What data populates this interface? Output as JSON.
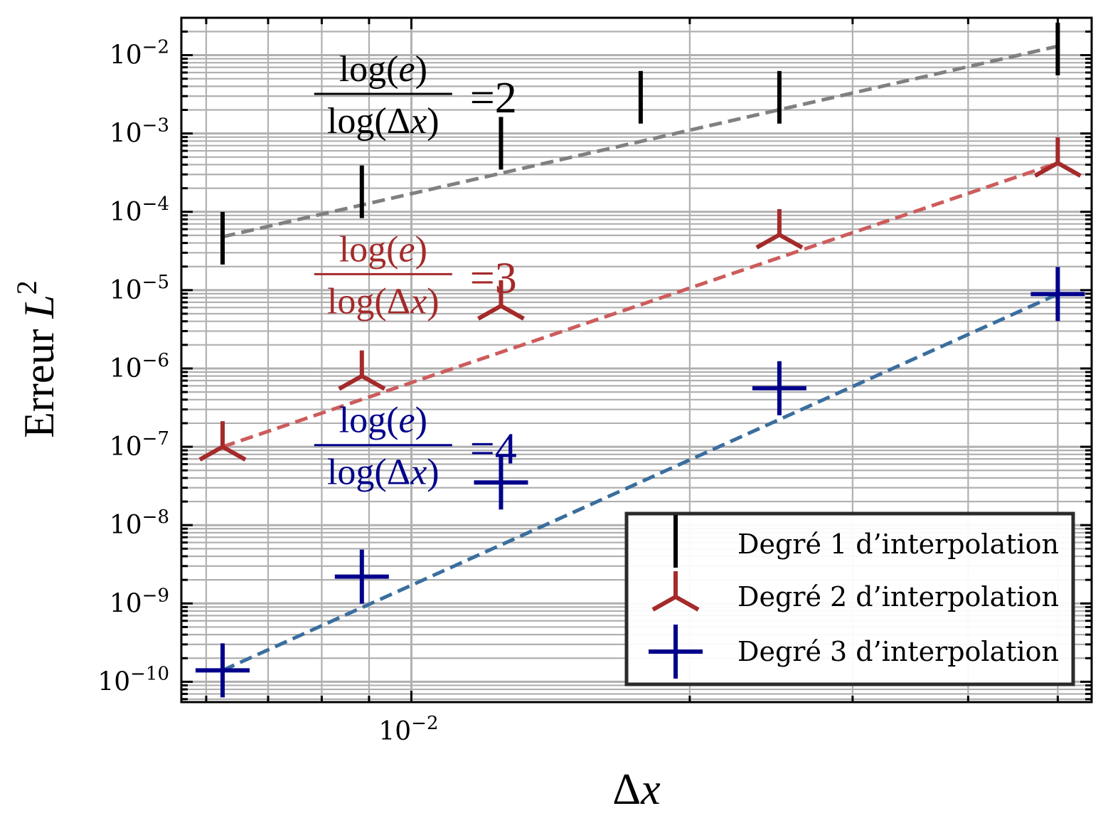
{
  "chart_data": {
    "type": "scatter",
    "xlabel_prefix": "Δ",
    "xlabel_var": "x",
    "ylabel_prefix": "Erreur ",
    "ylabel_var": "L",
    "ylabel_exp": "2",
    "x_scale": "log",
    "y_scale": "log",
    "xlim": [
      0.00564,
      0.0544
    ],
    "ylim": [
      5.5e-11,
      0.03
    ],
    "grid": true,
    "legend_position": "lower right",
    "x_ticks": [
      {
        "value": 0.01,
        "base": "10",
        "exp": "−2"
      }
    ],
    "y_ticks": [
      {
        "value": 0.01,
        "base": "10",
        "exp": "−2"
      },
      {
        "value": 0.001,
        "base": "10",
        "exp": "−3"
      },
      {
        "value": 0.0001,
        "base": "10",
        "exp": "−4"
      },
      {
        "value": 1e-05,
        "base": "10",
        "exp": "−5"
      },
      {
        "value": 1e-06,
        "base": "10",
        "exp": "−6"
      },
      {
        "value": 1e-07,
        "base": "10",
        "exp": "−7"
      },
      {
        "value": 1e-08,
        "base": "10",
        "exp": "−8"
      },
      {
        "value": 1e-09,
        "base": "10",
        "exp": "−9"
      },
      {
        "value": 1e-10,
        "base": "10",
        "exp": "−10"
      }
    ],
    "x": [
      0.00625,
      0.0125,
      0.025,
      0.05
    ],
    "series": [
      {
        "name": "Degré 1 d’interpolation",
        "marker": "vline",
        "color": "#000000",
        "fit_color": "#808080",
        "x": [
          0.00625,
          0.00884,
          0.0125,
          0.0177,
          0.025,
          0.05
        ],
        "values": [
          4.6e-05,
          0.00018,
          0.00075,
          0.0029,
          0.0029,
          0.012
        ],
        "fit": [
          [
            0.00625,
            4.8e-05
          ],
          [
            0.05,
            0.013
          ]
        ]
      },
      {
        "name": "Degré 2 d’interpolation",
        "marker": "tri_up",
        "color": "#a52a2a",
        "fit_color": "#cd5c5c",
        "x": [
          0.00625,
          0.00884,
          0.0125,
          0.025,
          0.05
        ],
        "values": [
          1e-07,
          8e-07,
          6.3e-06,
          5.1e-05,
          0.00042
        ],
        "fit": [
          [
            0.00625,
            1e-07
          ],
          [
            0.05,
            0.00042
          ]
        ]
      },
      {
        "name": "Degré 3 d’interpolation",
        "marker": "plus",
        "color": "#00008b",
        "fit_color": "#3a6e9e",
        "x": [
          0.00625,
          0.00884,
          0.0125,
          0.025,
          0.05
        ],
        "values": [
          1.4e-10,
          2.2e-09,
          3.5e-08,
          5.6e-07,
          8.9e-06
        ],
        "fit": [
          [
            0.00625,
            1.4e-10
          ],
          [
            0.05,
            8.9e-06
          ]
        ]
      }
    ],
    "annotations": [
      {
        "numerator_fn": "log(",
        "numerator_var": "e",
        "numerator_close": ")",
        "denominator_fn": "log(Δ",
        "denominator_var": "x",
        "denominator_close": ")",
        "value": "=2",
        "color": "#000000"
      },
      {
        "numerator_fn": "log(",
        "numerator_var": "e",
        "numerator_close": ")",
        "denominator_fn": "log(Δ",
        "denominator_var": "x",
        "denominator_close": ")",
        "value": "=3",
        "color": "#a52a2a"
      },
      {
        "numerator_fn": "log(",
        "numerator_var": "e",
        "numerator_close": ")",
        "denominator_fn": "log(Δ",
        "denominator_var": "x",
        "denominator_close": ")",
        "value": "=4",
        "color": "#00008b"
      }
    ]
  }
}
